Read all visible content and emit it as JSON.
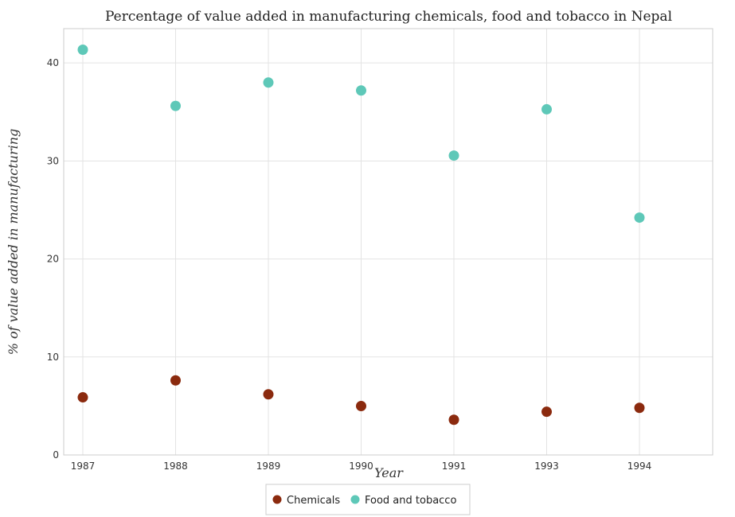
{
  "chart_data": {
    "type": "scatter",
    "title": "Percentage of value added in manufacturing chemicals, food and tobacco in Nepal",
    "xlabel": "Year",
    "ylabel": "% of value added in manufacturing",
    "categories": [
      "1987",
      "1988",
      "1989",
      "1990",
      "1991",
      "1993",
      "1994"
    ],
    "y_ticks": [
      "0",
      "10",
      "20",
      "30",
      "40"
    ],
    "ylim": [
      0,
      43.5
    ],
    "grid": true,
    "legend_position": "bottom-center",
    "series": [
      {
        "name": "Chemicals",
        "color": "#8b2a0e",
        "values": [
          5.88,
          7.61,
          6.19,
          4.99,
          3.59,
          4.41,
          4.81
        ]
      },
      {
        "name": "Food and tobacco",
        "color": "#5ec8b8",
        "values": [
          41.35,
          35.62,
          38.0,
          37.19,
          30.55,
          35.27,
          24.22
        ]
      }
    ]
  }
}
